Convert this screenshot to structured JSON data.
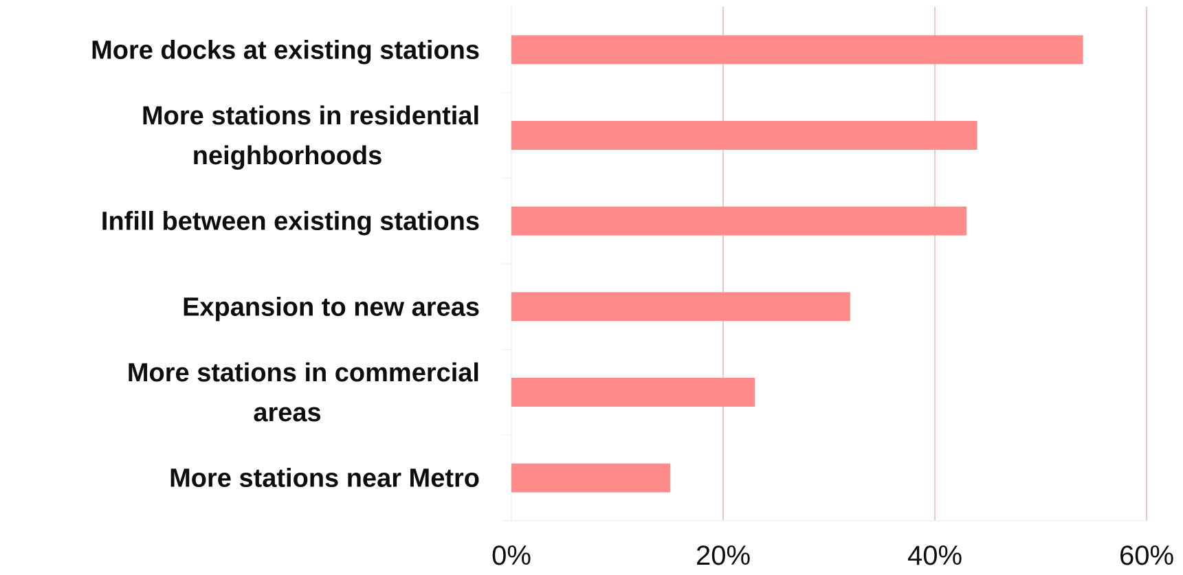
{
  "chart_data": {
    "type": "bar",
    "orientation": "horizontal",
    "categories": [
      "More docks at existing stations",
      "More stations in residential neighborhoods",
      "Infill between existing stations",
      "Expansion to new areas",
      "More stations in commercial areas",
      "More stations near Metro"
    ],
    "values": [
      54,
      44,
      43,
      32,
      23,
      15
    ],
    "xlim": [
      0,
      60
    ],
    "xticks": [
      "0%",
      "20%",
      "40%",
      "60%"
    ],
    "title": "",
    "xlabel": "",
    "ylabel": "",
    "grid": "vertical",
    "legend": "none",
    "bar_color": "#ff8a8a",
    "grid_color": "#f7c4c4"
  }
}
